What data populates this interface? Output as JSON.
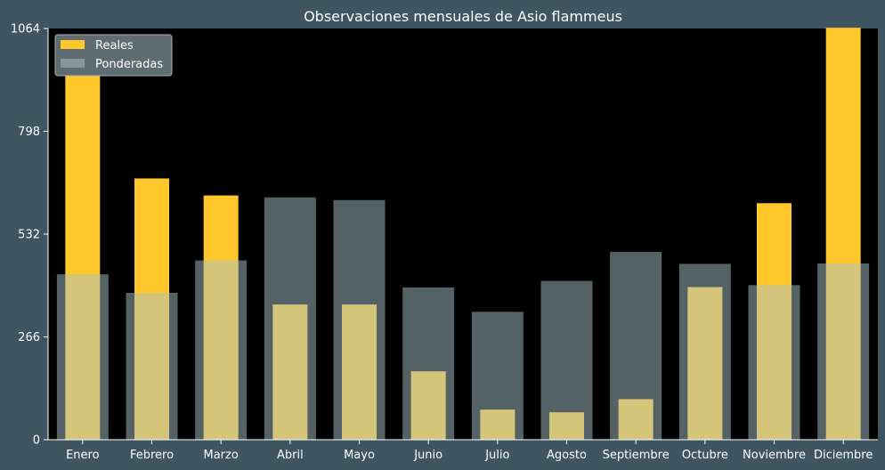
{
  "chart_data": {
    "type": "bar",
    "title": "Observaciones mensuales de Asio flammeus",
    "xlabel": "",
    "ylabel": "",
    "categories": [
      "Enero",
      "Febrero",
      "Marzo",
      "Abril",
      "Mayo",
      "Junio",
      "Julio",
      "Agosto",
      "Septiembre",
      "Octubre",
      "Noviembre",
      "Diciembre"
    ],
    "series": [
      {
        "name": "Reales",
        "values": [
          943,
          676,
          632,
          350,
          350,
          177,
          78,
          71,
          105,
          395,
          612,
          1066
        ]
      },
      {
        "name": "Ponderadas",
        "values": [
          428,
          380,
          464,
          627,
          620,
          394,
          331,
          411,
          486,
          455,
          400,
          456
        ]
      }
    ],
    "yticks": [
      0,
      266,
      532,
      798,
      1064
    ],
    "ylim": [
      0,
      1064
    ],
    "legend_position": "top-left",
    "grid": false,
    "colors": {
      "background": "#3f5561",
      "plot_area": "#000000",
      "reales": "#ffc72c",
      "ponderadas": "#a9c4c9",
      "text": "#ffffff"
    }
  }
}
